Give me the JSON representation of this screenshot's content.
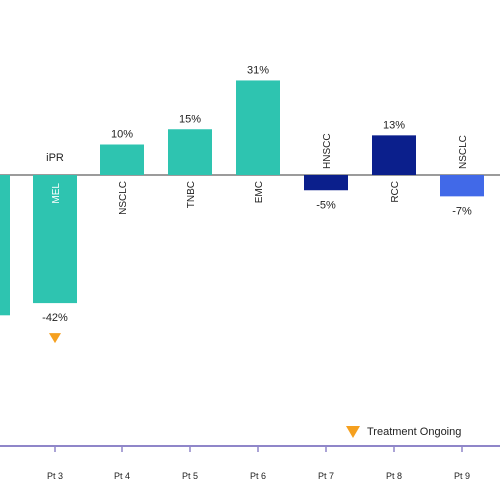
{
  "chart_data": {
    "type": "bar",
    "ylim": [
      -50,
      35
    ],
    "grid": false,
    "legend_position": "bottom-right",
    "categories": [
      "",
      "Pt 3",
      "Pt 4",
      "Pt 5",
      "Pt 6",
      "Pt 7",
      "Pt 8",
      "Pt 9"
    ],
    "values": [
      -46,
      -42,
      10,
      15,
      31,
      -5,
      13,
      -7
    ],
    "value_labels": [
      "",
      "-42%",
      "10%",
      "15%",
      "31%",
      "-5%",
      "13%",
      "-7%"
    ],
    "tumor_types": [
      "",
      "MEL",
      "NSCLC",
      "TNBC",
      "EMC",
      "HNSCC",
      "RCC",
      "NSCLC"
    ],
    "response_labels": [
      "",
      "iPR",
      "",
      "",
      "",
      "",
      "",
      ""
    ],
    "treatment_ongoing": [
      false,
      true,
      false,
      false,
      false,
      false,
      false,
      false
    ],
    "bar_colors": [
      "#2ec4b0",
      "#2ec4b0",
      "#2ec4b0",
      "#2ec4b0",
      "#2ec4b0",
      "#0b1f8c",
      "#0b1f8c",
      "#4169e8"
    ],
    "legend": {
      "marker_color": "#f5a01f",
      "label": "Treatment Ongoing"
    },
    "axis_color": "#8f86c9"
  }
}
